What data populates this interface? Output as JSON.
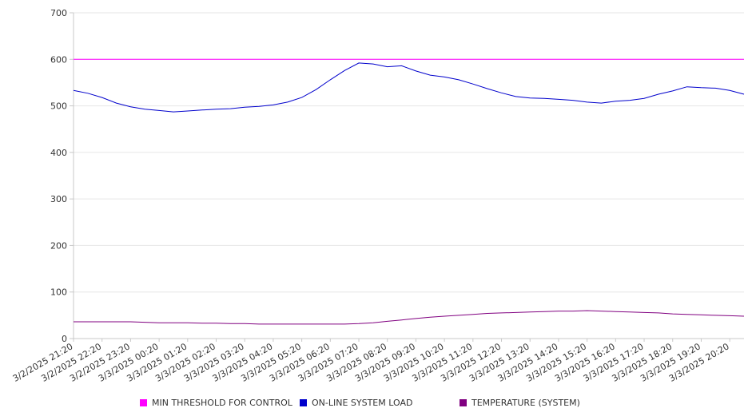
{
  "chart_data": {
    "type": "line",
    "title": "",
    "xlabel": "",
    "ylabel": "",
    "ylim": [
      0,
      700
    ],
    "y_ticks": [
      0,
      100,
      200,
      300,
      400,
      500,
      600,
      700
    ],
    "grid": true,
    "legend_position": "bottom",
    "x_tick_labels": [
      "3/2/2025 21:20",
      "3/2/2025 22:20",
      "3/2/2025 23:20",
      "3/3/2025 00:20",
      "3/3/2025 01:20",
      "3/3/2025 02:20",
      "3/3/2025 03:20",
      "3/3/2025 04:20",
      "3/3/2025 05:20",
      "3/3/2025 06:20",
      "3/3/2025 07:20",
      "3/3/2025 08:20",
      "3/3/2025 09:20",
      "3/3/2025 10:20",
      "3/3/2025 11:20",
      "3/3/2025 12:20",
      "3/3/2025 13:20",
      "3/3/2025 14:20",
      "3/3/2025 15:20",
      "3/3/2025 16:20",
      "3/3/2025 17:20",
      "3/3/2025 18:20",
      "3/3/2025 19:20",
      "3/3/2025 20:20"
    ],
    "x": [
      "3/2/2025 21:20",
      "3/2/2025 21:50",
      "3/2/2025 22:20",
      "3/2/2025 22:50",
      "3/2/2025 23:20",
      "3/2/2025 23:50",
      "3/3/2025 00:20",
      "3/3/2025 00:50",
      "3/3/2025 01:20",
      "3/3/2025 01:50",
      "3/3/2025 02:20",
      "3/3/2025 02:50",
      "3/3/2025 03:20",
      "3/3/2025 03:50",
      "3/3/2025 04:20",
      "3/3/2025 04:50",
      "3/3/2025 05:20",
      "3/3/2025 05:50",
      "3/3/2025 06:20",
      "3/3/2025 06:50",
      "3/3/2025 07:20",
      "3/3/2025 07:50",
      "3/3/2025 08:20",
      "3/3/2025 08:50",
      "3/3/2025 09:20",
      "3/3/2025 09:50",
      "3/3/2025 10:20",
      "3/3/2025 10:50",
      "3/3/2025 11:20",
      "3/3/2025 11:50",
      "3/3/2025 12:20",
      "3/3/2025 12:50",
      "3/3/2025 13:20",
      "3/3/2025 13:50",
      "3/3/2025 14:20",
      "3/3/2025 14:50",
      "3/3/2025 15:20",
      "3/3/2025 15:50",
      "3/3/2025 16:20",
      "3/3/2025 16:50",
      "3/3/2025 17:20",
      "3/3/2025 17:50",
      "3/3/2025 18:20",
      "3/3/2025 18:50",
      "3/3/2025 19:20",
      "3/3/2025 19:50",
      "3/3/2025 20:20",
      "3/3/2025 20:50"
    ],
    "series": [
      {
        "name": "MIN THRESHOLD FOR CONTROL",
        "color": "#ff00ff",
        "values": [
          600,
          600,
          600,
          600,
          600,
          600,
          600,
          600,
          600,
          600,
          600,
          600,
          600,
          600,
          600,
          600,
          600,
          600,
          600,
          600,
          600,
          600,
          600,
          600,
          600,
          600,
          600,
          600,
          600,
          600,
          600,
          600,
          600,
          600,
          600,
          600,
          600,
          600,
          600,
          600,
          600,
          600,
          600,
          600,
          600,
          600,
          600,
          600
        ]
      },
      {
        "name": "ON-LINE SYSTEM LOAD",
        "color": "#0000cc",
        "values": [
          533,
          527,
          518,
          506,
          498,
          493,
          490,
          487,
          489,
          491,
          493,
          494,
          497,
          499,
          502,
          508,
          518,
          535,
          556,
          576,
          592,
          590,
          584,
          586,
          575,
          566,
          562,
          556,
          547,
          537,
          528,
          520,
          517,
          516,
          514,
          512,
          508,
          506,
          510,
          512,
          516,
          525,
          532,
          541,
          539,
          538,
          533,
          525
        ]
      },
      {
        "name": "TEMPERATURE (SYSTEM)",
        "color": "#800080",
        "values": [
          36,
          36,
          36,
          36,
          36,
          35,
          34,
          34,
          34,
          33,
          33,
          32,
          32,
          31,
          31,
          31,
          31,
          31,
          31,
          31,
          32,
          34,
          37,
          40,
          43,
          46,
          48,
          50,
          52,
          54,
          55,
          56,
          57,
          58,
          59,
          59,
          60,
          59,
          58,
          57,
          56,
          55,
          53,
          52,
          51,
          50,
          49,
          48
        ]
      }
    ]
  },
  "legend": {
    "items": [
      {
        "label": "MIN THRESHOLD FOR CONTROL",
        "color": "#ff00ff"
      },
      {
        "label": "ON-LINE SYSTEM LOAD",
        "color": "#0000cc"
      },
      {
        "label": "TEMPERATURE (SYSTEM)",
        "color": "#800080"
      }
    ]
  }
}
